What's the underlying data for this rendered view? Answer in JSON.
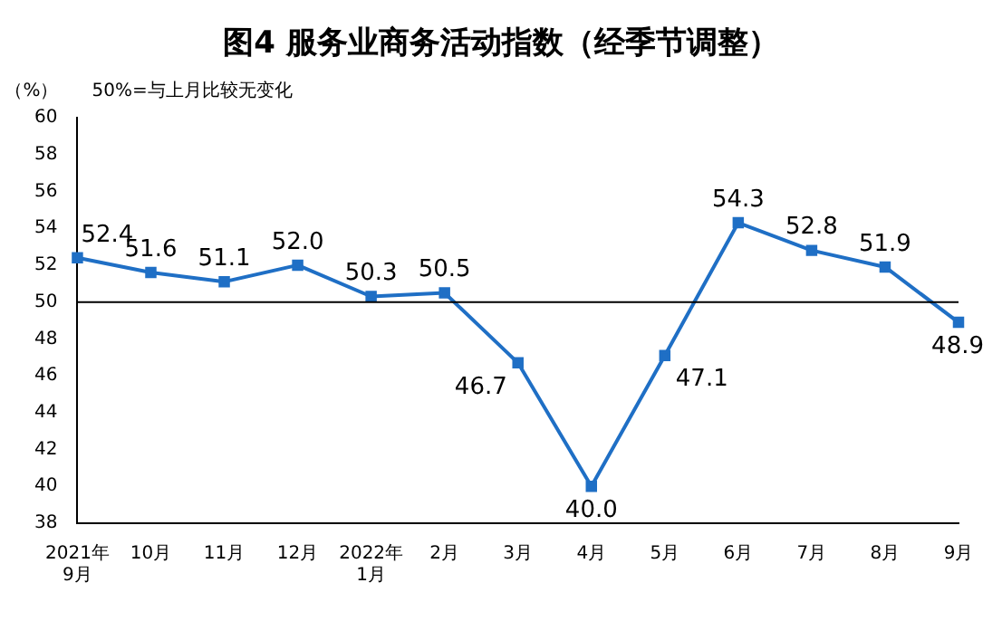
{
  "chart_data": {
    "type": "line",
    "title": "图4  服务业商务活动指数（经季节调整）",
    "ylabel": "（%）",
    "annotations": [
      "50%=与上月比较无变化"
    ],
    "categories": [
      "2021年\n9月",
      "10月",
      "11月",
      "12月",
      "2022年\n1月",
      "2月",
      "3月",
      "4月",
      "5月",
      "6月",
      "7月",
      "8月",
      "9月"
    ],
    "series": [
      {
        "color": "#1f6fc5",
        "values": [
          52.4,
          51.6,
          51.1,
          52.0,
          50.3,
          50.5,
          46.7,
          40.0,
          47.1,
          54.3,
          52.8,
          51.9,
          48.9
        ],
        "value_labels": [
          "52.4",
          "51.6",
          "51.1",
          "52.0",
          "50.3",
          "50.5",
          "46.7",
          "40.0",
          "47.1",
          "54.3",
          "52.8",
          "51.9",
          "48.9"
        ]
      }
    ],
    "ylim": [
      38,
      60
    ],
    "yticks": [
      38,
      40,
      42,
      44,
      46,
      48,
      50,
      52,
      54,
      56,
      58,
      60
    ],
    "ref_lines": [
      {
        "axis": "y",
        "value": 50,
        "color": "#000000"
      }
    ],
    "grid": false,
    "legend": false,
    "marker": "square",
    "line_style": "solid"
  }
}
